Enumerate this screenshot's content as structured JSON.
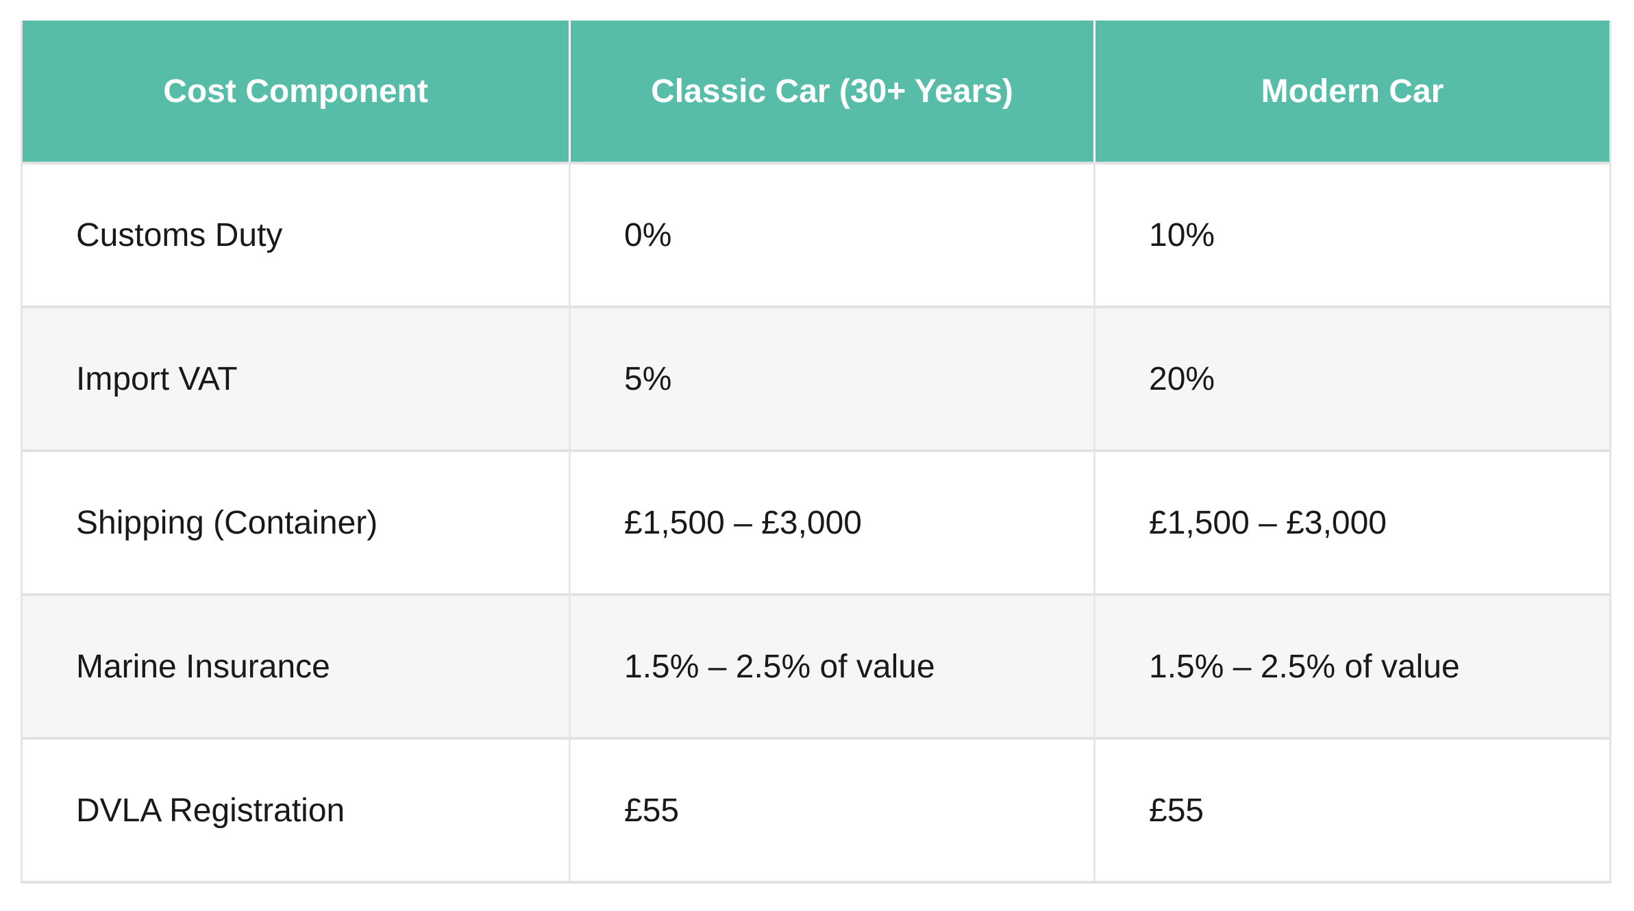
{
  "table": {
    "columns": [
      {
        "label": "Cost Component"
      },
      {
        "label": "Classic Car (30+ Years)"
      },
      {
        "label": "Modern Car"
      }
    ],
    "rows": [
      {
        "component": "Customs Duty",
        "classic": "0%",
        "modern": "10%"
      },
      {
        "component": "Import VAT",
        "classic": "5%",
        "modern": "20%"
      },
      {
        "component": "Shipping (Container)",
        "classic": "£1,500 – £3,000",
        "modern": "£1,500 – £3,000"
      },
      {
        "component": "Marine Insurance",
        "classic": "1.5% – 2.5% of value",
        "modern": "1.5% – 2.5% of value"
      },
      {
        "component": "DVLA Registration",
        "classic": "£55",
        "modern": "£55"
      }
    ]
  },
  "colors": {
    "header_bg": "#57bda9",
    "header_text": "#ffffff",
    "row_bg": "#ffffff",
    "row_alt_bg": "#f6f6f6",
    "border": "#e1e1e1",
    "body_text": "#191919"
  },
  "chart_data": {
    "type": "table",
    "columns": [
      "Cost Component",
      "Classic Car (30+ Years)",
      "Modern Car"
    ],
    "rows": [
      [
        "Customs Duty",
        "0%",
        "10%"
      ],
      [
        "Import VAT",
        "5%",
        "20%"
      ],
      [
        "Shipping (Container)",
        "£1,500 – £3,000",
        "£1,500 – £3,000"
      ],
      [
        "Marine Insurance",
        "1.5% – 2.5% of value",
        "1.5% – 2.5% of value"
      ],
      [
        "DVLA Registration",
        "£55",
        "£55"
      ]
    ]
  }
}
